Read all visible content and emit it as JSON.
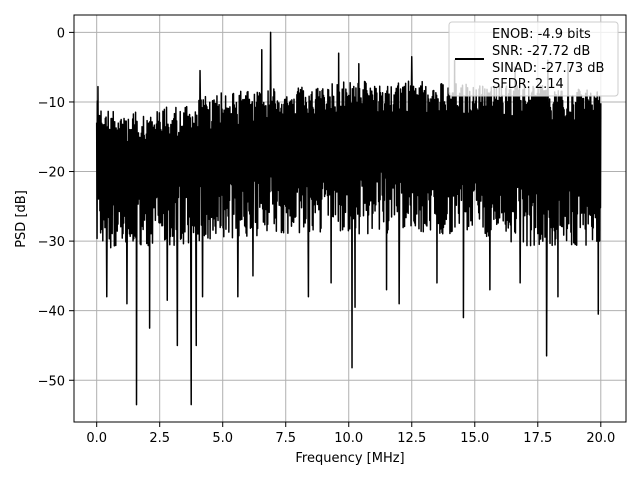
{
  "chart_data": {
    "type": "line",
    "xlabel": "Frequency [MHz]",
    "ylabel": "PSD [dB]",
    "xlim": [
      -0.9,
      21.0
    ],
    "ylim": [
      -56.0,
      2.5
    ],
    "xticks": [
      0.0,
      2.5,
      5.0,
      7.5,
      10.0,
      12.5,
      15.0,
      17.5,
      20.0
    ],
    "xtick_labels": [
      "0.0",
      "2.5",
      "5.0",
      "7.5",
      "10.0",
      "12.5",
      "15.0",
      "17.5",
      "20.0"
    ],
    "yticks": [
      0,
      -10,
      -20,
      -30,
      -40,
      -50
    ],
    "ytick_labels": [
      "0",
      "−10",
      "−20",
      "−30",
      "−40",
      "−50"
    ],
    "grid": true,
    "legend_position": "top-right",
    "legend_lines": [
      "ENOB: -4.9 bits",
      "SNR: -27.72 dB",
      "SINAD: -27.73 dB",
      "SFDR: 2.14"
    ],
    "series": [
      {
        "color": "#000000",
        "x_start": 0.0,
        "x_end": 20.0,
        "envelope_upper": [
          [
            0.0,
            -9.5
          ],
          [
            0.5,
            -11
          ],
          [
            2.0,
            -11
          ],
          [
            3.0,
            -10.5
          ],
          [
            5.0,
            -8.5
          ],
          [
            7.5,
            -8
          ],
          [
            10.0,
            -7
          ],
          [
            12.5,
            -7
          ],
          [
            15.0,
            -7.5
          ],
          [
            17.5,
            -7.5
          ],
          [
            20.0,
            -8.5
          ]
        ],
        "envelope_lower": [
          [
            0.0,
            -31
          ],
          [
            2.5,
            -31
          ],
          [
            5.0,
            -30
          ],
          [
            7.5,
            -29
          ],
          [
            10.0,
            -29
          ],
          [
            12.5,
            -29
          ],
          [
            15.0,
            -29
          ],
          [
            17.5,
            -31
          ],
          [
            20.0,
            -31
          ]
        ],
        "peaks": [
          [
            0.05,
            -7.8
          ],
          [
            6.9,
            0.0
          ],
          [
            6.55,
            -2.5
          ],
          [
            9.6,
            -3.0
          ],
          [
            12.5,
            -3.5
          ],
          [
            14.2,
            -4.0
          ],
          [
            17.9,
            -4.0
          ],
          [
            18.7,
            -4.5
          ],
          [
            4.1,
            -5.5
          ],
          [
            10.4,
            -4.5
          ],
          [
            16.6,
            -5.0
          ]
        ],
        "dips": [
          [
            1.58,
            -53.5
          ],
          [
            3.75,
            -53.5
          ],
          [
            10.13,
            -48.2
          ],
          [
            3.2,
            -45
          ],
          [
            3.95,
            -45
          ],
          [
            2.1,
            -42.5
          ],
          [
            14.55,
            -41
          ],
          [
            10.25,
            -39.5
          ],
          [
            17.85,
            -46.5
          ],
          [
            0.4,
            -38
          ],
          [
            1.2,
            -39
          ],
          [
            19.9,
            -40.5
          ],
          [
            12.0,
            -39
          ],
          [
            4.2,
            -38
          ],
          [
            5.6,
            -38
          ],
          [
            8.4,
            -38
          ],
          [
            11.5,
            -37
          ],
          [
            13.5,
            -36
          ],
          [
            15.6,
            -37
          ],
          [
            18.3,
            -38
          ],
          [
            6.2,
            -35
          ],
          [
            2.8,
            -38.5
          ],
          [
            9.3,
            -36
          ],
          [
            16.8,
            -36
          ]
        ]
      }
    ]
  }
}
